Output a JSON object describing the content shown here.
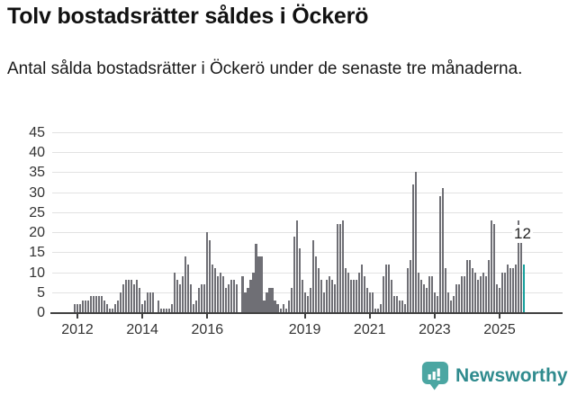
{
  "header": {
    "title": "Tolv bostadsrätter såldes i Öckerö",
    "subtitle": "Antal sålda bostadsrätter i Öckerö under de senaste tre månaderna."
  },
  "chart_data": {
    "type": "bar",
    "title": "Tolv bostadsrätter såldes i Öckerö",
    "xlabel": "",
    "ylabel": "",
    "ylim": [
      0,
      45
    ],
    "grid": true,
    "y_ticks": [
      0,
      5,
      10,
      15,
      20,
      25,
      30,
      35,
      40,
      45
    ],
    "x_ticks": [
      {
        "label": "2012",
        "index": 1
      },
      {
        "label": "2014",
        "index": 25
      },
      {
        "label": "2016",
        "index": 49
      },
      {
        "label": "2019",
        "index": 85
      },
      {
        "label": "2021",
        "index": 109
      },
      {
        "label": "2023",
        "index": 133
      },
      {
        "label": "2025",
        "index": 157
      }
    ],
    "values": [
      2,
      2,
      2,
      3,
      3,
      3,
      4,
      4,
      4,
      4,
      4,
      3,
      2,
      1,
      1,
      2,
      3,
      5,
      7,
      8,
      8,
      8,
      7,
      8,
      6,
      2,
      3,
      5,
      5,
      5,
      0,
      3,
      1,
      1,
      1,
      1,
      2,
      10,
      8,
      7,
      9,
      14,
      12,
      7,
      2,
      3,
      6,
      7,
      7,
      20,
      18,
      12,
      11,
      9,
      10,
      9,
      6,
      7,
      8,
      8,
      7,
      0,
      9,
      5,
      6,
      8,
      10,
      17,
      14,
      14,
      3,
      5,
      6,
      6,
      3,
      2,
      1,
      2,
      1,
      3,
      6,
      19,
      23,
      16,
      8,
      5,
      4,
      6,
      18,
      14,
      11,
      8,
      5,
      8,
      9,
      8,
      7,
      22,
      22,
      23,
      11,
      10,
      8,
      8,
      8,
      10,
      12,
      9,
      6,
      5,
      5,
      1,
      1,
      2,
      9,
      12,
      12,
      8,
      4,
      4,
      3,
      3,
      2,
      11,
      13,
      32,
      35,
      10,
      8,
      7,
      6,
      9,
      9,
      5,
      4,
      29,
      31,
      11,
      5,
      3,
      4,
      7,
      7,
      9,
      9,
      13,
      13,
      11,
      10,
      8,
      9,
      10,
      9,
      13,
      23,
      22,
      7,
      6,
      10,
      10,
      12,
      11,
      11,
      12,
      23,
      21,
      12
    ],
    "highlighted_bar_index": 166,
    "annotation": {
      "text": "12",
      "bar_index": 166
    }
  },
  "colors": {
    "bar": "#6f6f75",
    "highlight": "#16a09c",
    "grid": "#e2e2e2",
    "axis": "#404040",
    "axis_text": "#333333",
    "title": "#111111",
    "subtitle": "#1a1a1a",
    "annotation": "#222222",
    "logo_mark": "#4ba6a2",
    "logo_text": "#2f8b8e"
  },
  "footer": {
    "brand": "Newsworthy"
  }
}
